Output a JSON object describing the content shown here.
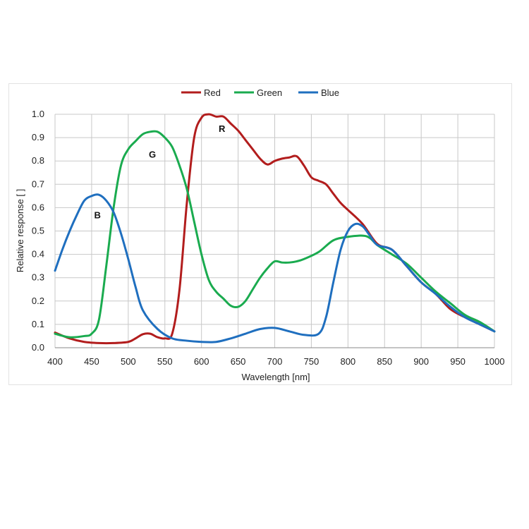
{
  "chart_data": {
    "type": "line",
    "title": "",
    "xlabel": "Wavelength [nm]",
    "ylabel": "Relative response [ ]",
    "xlim": [
      400,
      1000
    ],
    "ylim": [
      0,
      1.0
    ],
    "xticks": [
      "400",
      "450",
      "500",
      "550",
      "600",
      "650",
      "700",
      "750",
      "800",
      "850",
      "900",
      "950",
      "1000"
    ],
    "yticks": [
      "0.0",
      "0.1",
      "0.2",
      "0.3",
      "0.4",
      "0.5",
      "0.6",
      "0.7",
      "0.8",
      "0.9",
      "1.0"
    ],
    "grid": true,
    "legend_position": "top-center",
    "series": [
      {
        "name": "Red",
        "color": "#b21d1d",
        "x": [
          400,
          420,
          440,
          460,
          480,
          500,
          510,
          520,
          530,
          540,
          550,
          560,
          570,
          580,
          590,
          600,
          610,
          620,
          630,
          640,
          650,
          660,
          670,
          680,
          690,
          700,
          710,
          720,
          730,
          740,
          750,
          760,
          770,
          780,
          790,
          800,
          820,
          840,
          860,
          880,
          900,
          920,
          940,
          960,
          980,
          1000
        ],
        "y": [
          0.065,
          0.04,
          0.025,
          0.02,
          0.02,
          0.025,
          0.04,
          0.058,
          0.06,
          0.045,
          0.04,
          0.06,
          0.25,
          0.62,
          0.9,
          0.985,
          1.0,
          0.99,
          0.99,
          0.96,
          0.93,
          0.89,
          0.85,
          0.81,
          0.785,
          0.8,
          0.81,
          0.815,
          0.82,
          0.78,
          0.73,
          0.715,
          0.7,
          0.66,
          0.62,
          0.59,
          0.53,
          0.445,
          0.42,
          0.35,
          0.28,
          0.23,
          0.165,
          0.13,
          0.1,
          0.07
        ]
      },
      {
        "name": "Green",
        "color": "#1aab4f",
        "x": [
          400,
          420,
          440,
          450,
          460,
          470,
          480,
          490,
          500,
          510,
          520,
          530,
          540,
          550,
          560,
          570,
          580,
          590,
          600,
          610,
          620,
          630,
          640,
          650,
          660,
          670,
          680,
          690,
          700,
          710,
          720,
          730,
          740,
          760,
          780,
          800,
          820,
          830,
          840,
          860,
          880,
          900,
          920,
          940,
          960,
          980,
          1000
        ],
        "y": [
          0.06,
          0.045,
          0.05,
          0.06,
          0.12,
          0.35,
          0.6,
          0.78,
          0.85,
          0.885,
          0.915,
          0.925,
          0.925,
          0.9,
          0.86,
          0.78,
          0.68,
          0.54,
          0.4,
          0.29,
          0.24,
          0.21,
          0.18,
          0.175,
          0.2,
          0.25,
          0.3,
          0.34,
          0.37,
          0.365,
          0.365,
          0.37,
          0.38,
          0.41,
          0.46,
          0.475,
          0.48,
          0.47,
          0.44,
          0.4,
          0.36,
          0.3,
          0.24,
          0.19,
          0.14,
          0.11,
          0.07
        ]
      },
      {
        "name": "Blue",
        "color": "#1f6fbf",
        "x": [
          400,
          410,
          420,
          430,
          440,
          450,
          460,
          470,
          480,
          490,
          500,
          510,
          520,
          540,
          560,
          580,
          600,
          620,
          640,
          660,
          680,
          700,
          720,
          740,
          760,
          770,
          780,
          790,
          800,
          810,
          820,
          830,
          840,
          860,
          880,
          900,
          920,
          940,
          960,
          980,
          1000
        ],
        "y": [
          0.33,
          0.42,
          0.5,
          0.57,
          0.63,
          0.65,
          0.655,
          0.63,
          0.58,
          0.49,
          0.38,
          0.26,
          0.16,
          0.08,
          0.04,
          0.03,
          0.025,
          0.025,
          0.04,
          0.06,
          0.08,
          0.085,
          0.07,
          0.055,
          0.06,
          0.13,
          0.28,
          0.42,
          0.5,
          0.53,
          0.52,
          0.48,
          0.44,
          0.42,
          0.35,
          0.28,
          0.23,
          0.175,
          0.13,
          0.1,
          0.07
        ]
      }
    ],
    "annotations": [
      {
        "text": "R",
        "x": 628,
        "y": 0.94
      },
      {
        "text": "G",
        "x": 533,
        "y": 0.83
      },
      {
        "text": "B",
        "x": 458,
        "y": 0.57
      }
    ]
  }
}
